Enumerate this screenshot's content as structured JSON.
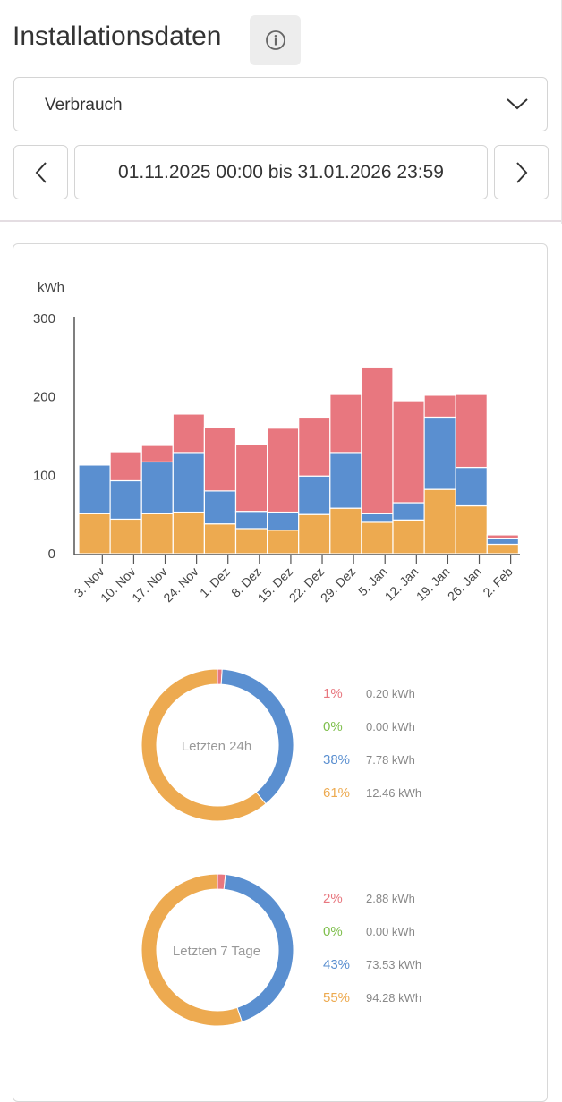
{
  "header": {
    "title": "Installationsdaten",
    "info_icon": "info-icon"
  },
  "selector": {
    "value": "Verbrauch"
  },
  "date_nav": {
    "range": "01.11.2025 00:00 bis 31.01.2026 23:59"
  },
  "colors": {
    "red": "#e8777f",
    "blue": "#5a8fd0",
    "orange": "#edaa50",
    "green": "#7fbf4d"
  },
  "chart_data": [
    {
      "type": "bar",
      "stacked": true,
      "ylabel": "kWh",
      "ylim": [
        0,
        300
      ],
      "yticks": [
        "0",
        "100",
        "200",
        "300"
      ],
      "categories": [
        "3. Nov",
        "10. Nov",
        "17. Nov",
        "24. Nov",
        "1. Dez",
        "8. Dez",
        "15. Dez",
        "22. Dez",
        "29. Dez",
        "5. Jan",
        "12. Jan",
        "19. Jan",
        "26. Jan",
        "2. Feb"
      ],
      "series": [
        {
          "name": "orange",
          "color": "#edaa50",
          "values": [
            51,
            44,
            51,
            53,
            38,
            32,
            30,
            50,
            58,
            40,
            43,
            82,
            61,
            12
          ]
        },
        {
          "name": "blue",
          "color": "#5a8fd0",
          "values": [
            62,
            49,
            66,
            76,
            42,
            22,
            23,
            49,
            71,
            11,
            22,
            92,
            49,
            7
          ]
        },
        {
          "name": "red",
          "color": "#e8777f",
          "values": [
            0,
            37,
            21,
            49,
            81,
            85,
            107,
            75,
            74,
            187,
            130,
            28,
            93,
            5
          ]
        }
      ]
    },
    {
      "type": "pie",
      "title": "Letzten 24h",
      "slices": [
        {
          "pct_label": "1%",
          "value": 0.2,
          "kwh": "0.20 kWh",
          "color": "#e8777f"
        },
        {
          "pct_label": "0%",
          "value": 0.0,
          "kwh": "0.00 kWh",
          "color": "#7fbf4d"
        },
        {
          "pct_label": "38%",
          "value": 7.78,
          "kwh": "7.78 kWh",
          "color": "#5a8fd0"
        },
        {
          "pct_label": "61%",
          "value": 12.46,
          "kwh": "12.46 kWh",
          "color": "#edaa50"
        }
      ]
    },
    {
      "type": "pie",
      "title": "Letzten 7 Tage",
      "slices": [
        {
          "pct_label": "2%",
          "value": 2.88,
          "kwh": "2.88 kWh",
          "color": "#e8777f"
        },
        {
          "pct_label": "0%",
          "value": 0.0,
          "kwh": "0.00 kWh",
          "color": "#7fbf4d"
        },
        {
          "pct_label": "43%",
          "value": 73.53,
          "kwh": "73.53 kWh",
          "color": "#5a8fd0"
        },
        {
          "pct_label": "55%",
          "value": 94.28,
          "kwh": "94.28 kWh",
          "color": "#edaa50"
        }
      ]
    }
  ]
}
